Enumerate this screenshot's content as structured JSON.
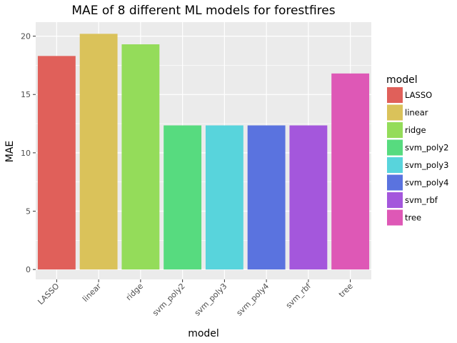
{
  "chart_data": {
    "type": "bar",
    "title": "MAE of 8 different ML models for forestfires",
    "xlabel": "model",
    "ylabel": "MAE",
    "categories": [
      "LASSO",
      "linear",
      "ridge",
      "svm_poly2",
      "svm_poly3",
      "svm_poly4",
      "svm_rbf",
      "tree"
    ],
    "values": [
      18.3,
      20.2,
      19.3,
      12.35,
      12.35,
      12.35,
      12.35,
      16.8
    ],
    "colors": [
      "#E0605A",
      "#DAC25A",
      "#94DC5A",
      "#57DB7F",
      "#58D4DC",
      "#5A73DF",
      "#A457DC",
      "#DE58B6"
    ],
    "ylim": [
      -0.85,
      21.2
    ],
    "yticks": [
      0,
      5,
      10,
      15,
      20
    ],
    "grid": true,
    "legend": {
      "title": "model",
      "placement": "right",
      "labels": [
        "LASSO",
        "linear",
        "ridge",
        "svm_poly2",
        "svm_poly3",
        "svm_poly4",
        "svm_rbf",
        "tree"
      ]
    }
  }
}
